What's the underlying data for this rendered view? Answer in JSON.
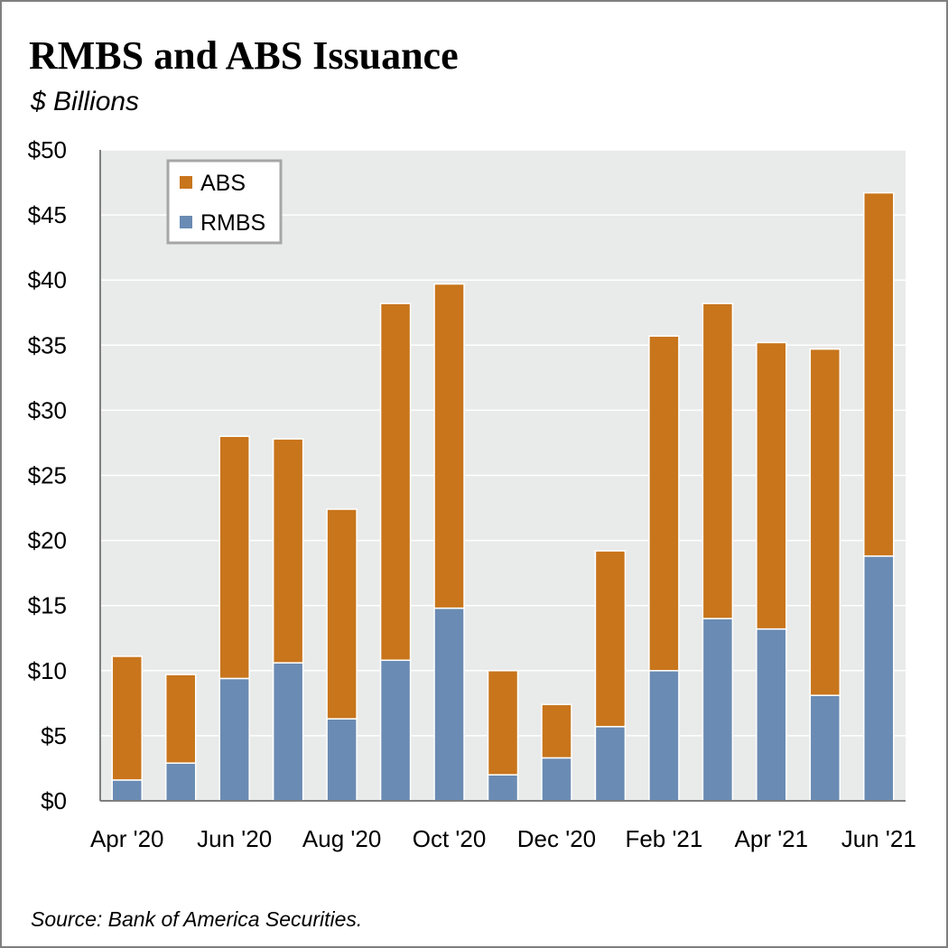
{
  "chart_data": {
    "type": "bar",
    "stacked": true,
    "title": "RMBS and ABS Issuance",
    "subtitle": "$ Billions",
    "source": "Source: Bank of America Securities.",
    "categories": [
      "Apr '20",
      "May '20",
      "Jun '20",
      "Jul '20",
      "Aug '20",
      "Sep '20",
      "Oct '20",
      "Nov '20",
      "Dec '20",
      "Jan '21",
      "Feb '21",
      "Mar '21",
      "Apr '21",
      "May '21",
      "Jun '21"
    ],
    "x_tick_labels": [
      "Apr '20",
      "",
      "Jun '20",
      "",
      "Aug '20",
      "",
      "Oct '20",
      "",
      "Dec '20",
      "",
      "Feb '21",
      "",
      "Apr '21",
      "",
      "Jun '21"
    ],
    "series": [
      {
        "name": "RMBS",
        "color": "#6a8bb3",
        "values": [
          1.6,
          2.9,
          9.4,
          10.6,
          6.3,
          10.8,
          14.8,
          2.0,
          3.3,
          5.7,
          10.0,
          14.0,
          13.2,
          8.1,
          18.8
        ]
      },
      {
        "name": "ABS",
        "color": "#c8751c",
        "values": [
          9.5,
          6.8,
          18.6,
          17.2,
          16.1,
          27.4,
          24.9,
          8.0,
          4.1,
          13.5,
          25.7,
          24.2,
          22.0,
          26.6,
          27.9
        ]
      }
    ],
    "legend_order": [
      "ABS",
      "RMBS"
    ],
    "ylim": [
      0,
      50
    ],
    "yticks": [
      0,
      5,
      10,
      15,
      20,
      25,
      30,
      35,
      40,
      45,
      50
    ],
    "ytick_labels": [
      "$0",
      "$5",
      "$10",
      "$15",
      "$20",
      "$25",
      "$30",
      "$35",
      "$40",
      "$45",
      "$50"
    ],
    "grid": true,
    "legend_position": "top-left",
    "plot_background": "#e9eaea",
    "grid_color": "#ffffff"
  }
}
